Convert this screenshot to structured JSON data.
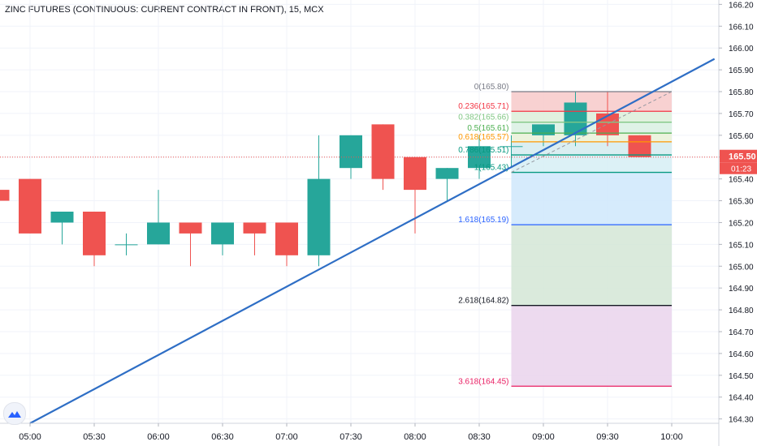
{
  "title": "ZINC FUTURES (CONTINUOUS: CURRENT CONTRACT IN FRONT), 15, MCX",
  "chart_data": {
    "type": "candlestick",
    "ylim": [
      164.28,
      166.22
    ],
    "x_ticks": [
      "05:00",
      "05:30",
      "06:00",
      "06:30",
      "07:00",
      "07:30",
      "08:00",
      "08:30",
      "09:00",
      "09:30",
      "10:00"
    ],
    "y_ticks": [
      "166.20",
      "166.10",
      "166.00",
      "165.90",
      "165.80",
      "165.70",
      "165.60",
      "165.50",
      "165.40",
      "165.30",
      "165.20",
      "165.10",
      "165.00",
      "164.90",
      "164.80",
      "164.70",
      "164.60",
      "164.50",
      "164.40",
      "164.30"
    ],
    "candles": [
      {
        "time": "04:45",
        "open": 165.35,
        "high": 165.35,
        "low": 165.3,
        "close": 165.3
      },
      {
        "time": "05:00",
        "open": 165.4,
        "high": 165.4,
        "low": 165.15,
        "close": 165.15
      },
      {
        "time": "05:15",
        "open": 165.2,
        "high": 165.25,
        "low": 165.1,
        "close": 165.25
      },
      {
        "time": "05:30",
        "open": 165.25,
        "high": 165.25,
        "low": 165.0,
        "close": 165.05
      },
      {
        "time": "05:45",
        "open": 165.1,
        "high": 165.15,
        "low": 165.05,
        "close": 165.1
      },
      {
        "time": "06:00",
        "open": 165.1,
        "high": 165.35,
        "low": 165.1,
        "close": 165.2
      },
      {
        "time": "06:15",
        "open": 165.2,
        "high": 165.2,
        "low": 165.0,
        "close": 165.15
      },
      {
        "time": "06:30",
        "open": 165.1,
        "high": 165.2,
        "low": 165.05,
        "close": 165.2
      },
      {
        "time": "06:45",
        "open": 165.2,
        "high": 165.2,
        "low": 165.05,
        "close": 165.15
      },
      {
        "time": "07:00",
        "open": 165.2,
        "high": 165.2,
        "low": 165.0,
        "close": 165.05
      },
      {
        "time": "07:15",
        "open": 165.05,
        "high": 165.6,
        "low": 165.0,
        "close": 165.4
      },
      {
        "time": "07:30",
        "open": 165.45,
        "high": 165.6,
        "low": 165.4,
        "close": 165.6
      },
      {
        "time": "07:45",
        "open": 165.65,
        "high": 165.65,
        "low": 165.35,
        "close": 165.4
      },
      {
        "time": "08:00",
        "open": 165.5,
        "high": 165.5,
        "low": 165.15,
        "close": 165.35
      },
      {
        "time": "08:15",
        "open": 165.4,
        "high": 165.45,
        "low": 165.3,
        "close": 165.45
      },
      {
        "time": "08:30",
        "open": 165.45,
        "high": 165.6,
        "low": 165.4,
        "close": 165.55
      },
      {
        "time": "08:45",
        "open": 165.55,
        "high": 165.6,
        "low": 165.45,
        "close": 165.55
      },
      {
        "time": "09:00",
        "open": 165.6,
        "high": 165.65,
        "low": 165.55,
        "close": 165.65
      },
      {
        "time": "09:15",
        "open": 165.6,
        "high": 165.8,
        "low": 165.55,
        "close": 165.75
      },
      {
        "time": "09:30",
        "open": 165.7,
        "high": 165.8,
        "low": 165.55,
        "close": 165.6
      },
      {
        "time": "09:45",
        "open": 165.6,
        "high": 165.6,
        "low": 165.5,
        "close": 165.5
      }
    ],
    "trendline": {
      "start": {
        "time": "05:00",
        "price": 164.28
      },
      "end": {
        "time": "10:20",
        "price": 165.95
      }
    },
    "fibonacci": {
      "start_time": "08:45",
      "end_time": "10:00",
      "levels": [
        {
          "ratio": "0",
          "price": 165.8,
          "label": "0(165.80)",
          "color": "#787b86"
        },
        {
          "ratio": "0.236",
          "price": 165.71,
          "label": "0.236(165.71)",
          "color": "#f23645"
        },
        {
          "ratio": "0.382",
          "price": 165.66,
          "label": "0.382(165.66)",
          "color": "#81c784"
        },
        {
          "ratio": "0.5",
          "price": 165.61,
          "label": "0.5(165.61)",
          "color": "#4caf50"
        },
        {
          "ratio": "0.618",
          "price": 165.57,
          "label": "0.618(165.57)",
          "color": "#ff9800"
        },
        {
          "ratio": "0.786",
          "price": 165.51,
          "label": "0.786(165.51)",
          "color": "#089981"
        },
        {
          "ratio": "1",
          "price": 165.43,
          "label": "1(165.43)",
          "color": "#089981"
        },
        {
          "ratio": "1.618",
          "price": 165.19,
          "label": "1.618(165.19)",
          "color": "#2962ff"
        },
        {
          "ratio": "2.618",
          "price": 164.82,
          "label": "2.618(164.82)",
          "color": "#131722"
        },
        {
          "ratio": "3.618",
          "price": 164.45,
          "label": "3.618(164.45)",
          "color": "#e91e63"
        }
      ]
    },
    "current_price": {
      "value": "165.50",
      "countdown": "01:23"
    },
    "colors": {
      "up": "#26a69a",
      "down": "#ef5350",
      "trendline": "#2e6ec5",
      "price_line": "#ef5350"
    }
  }
}
